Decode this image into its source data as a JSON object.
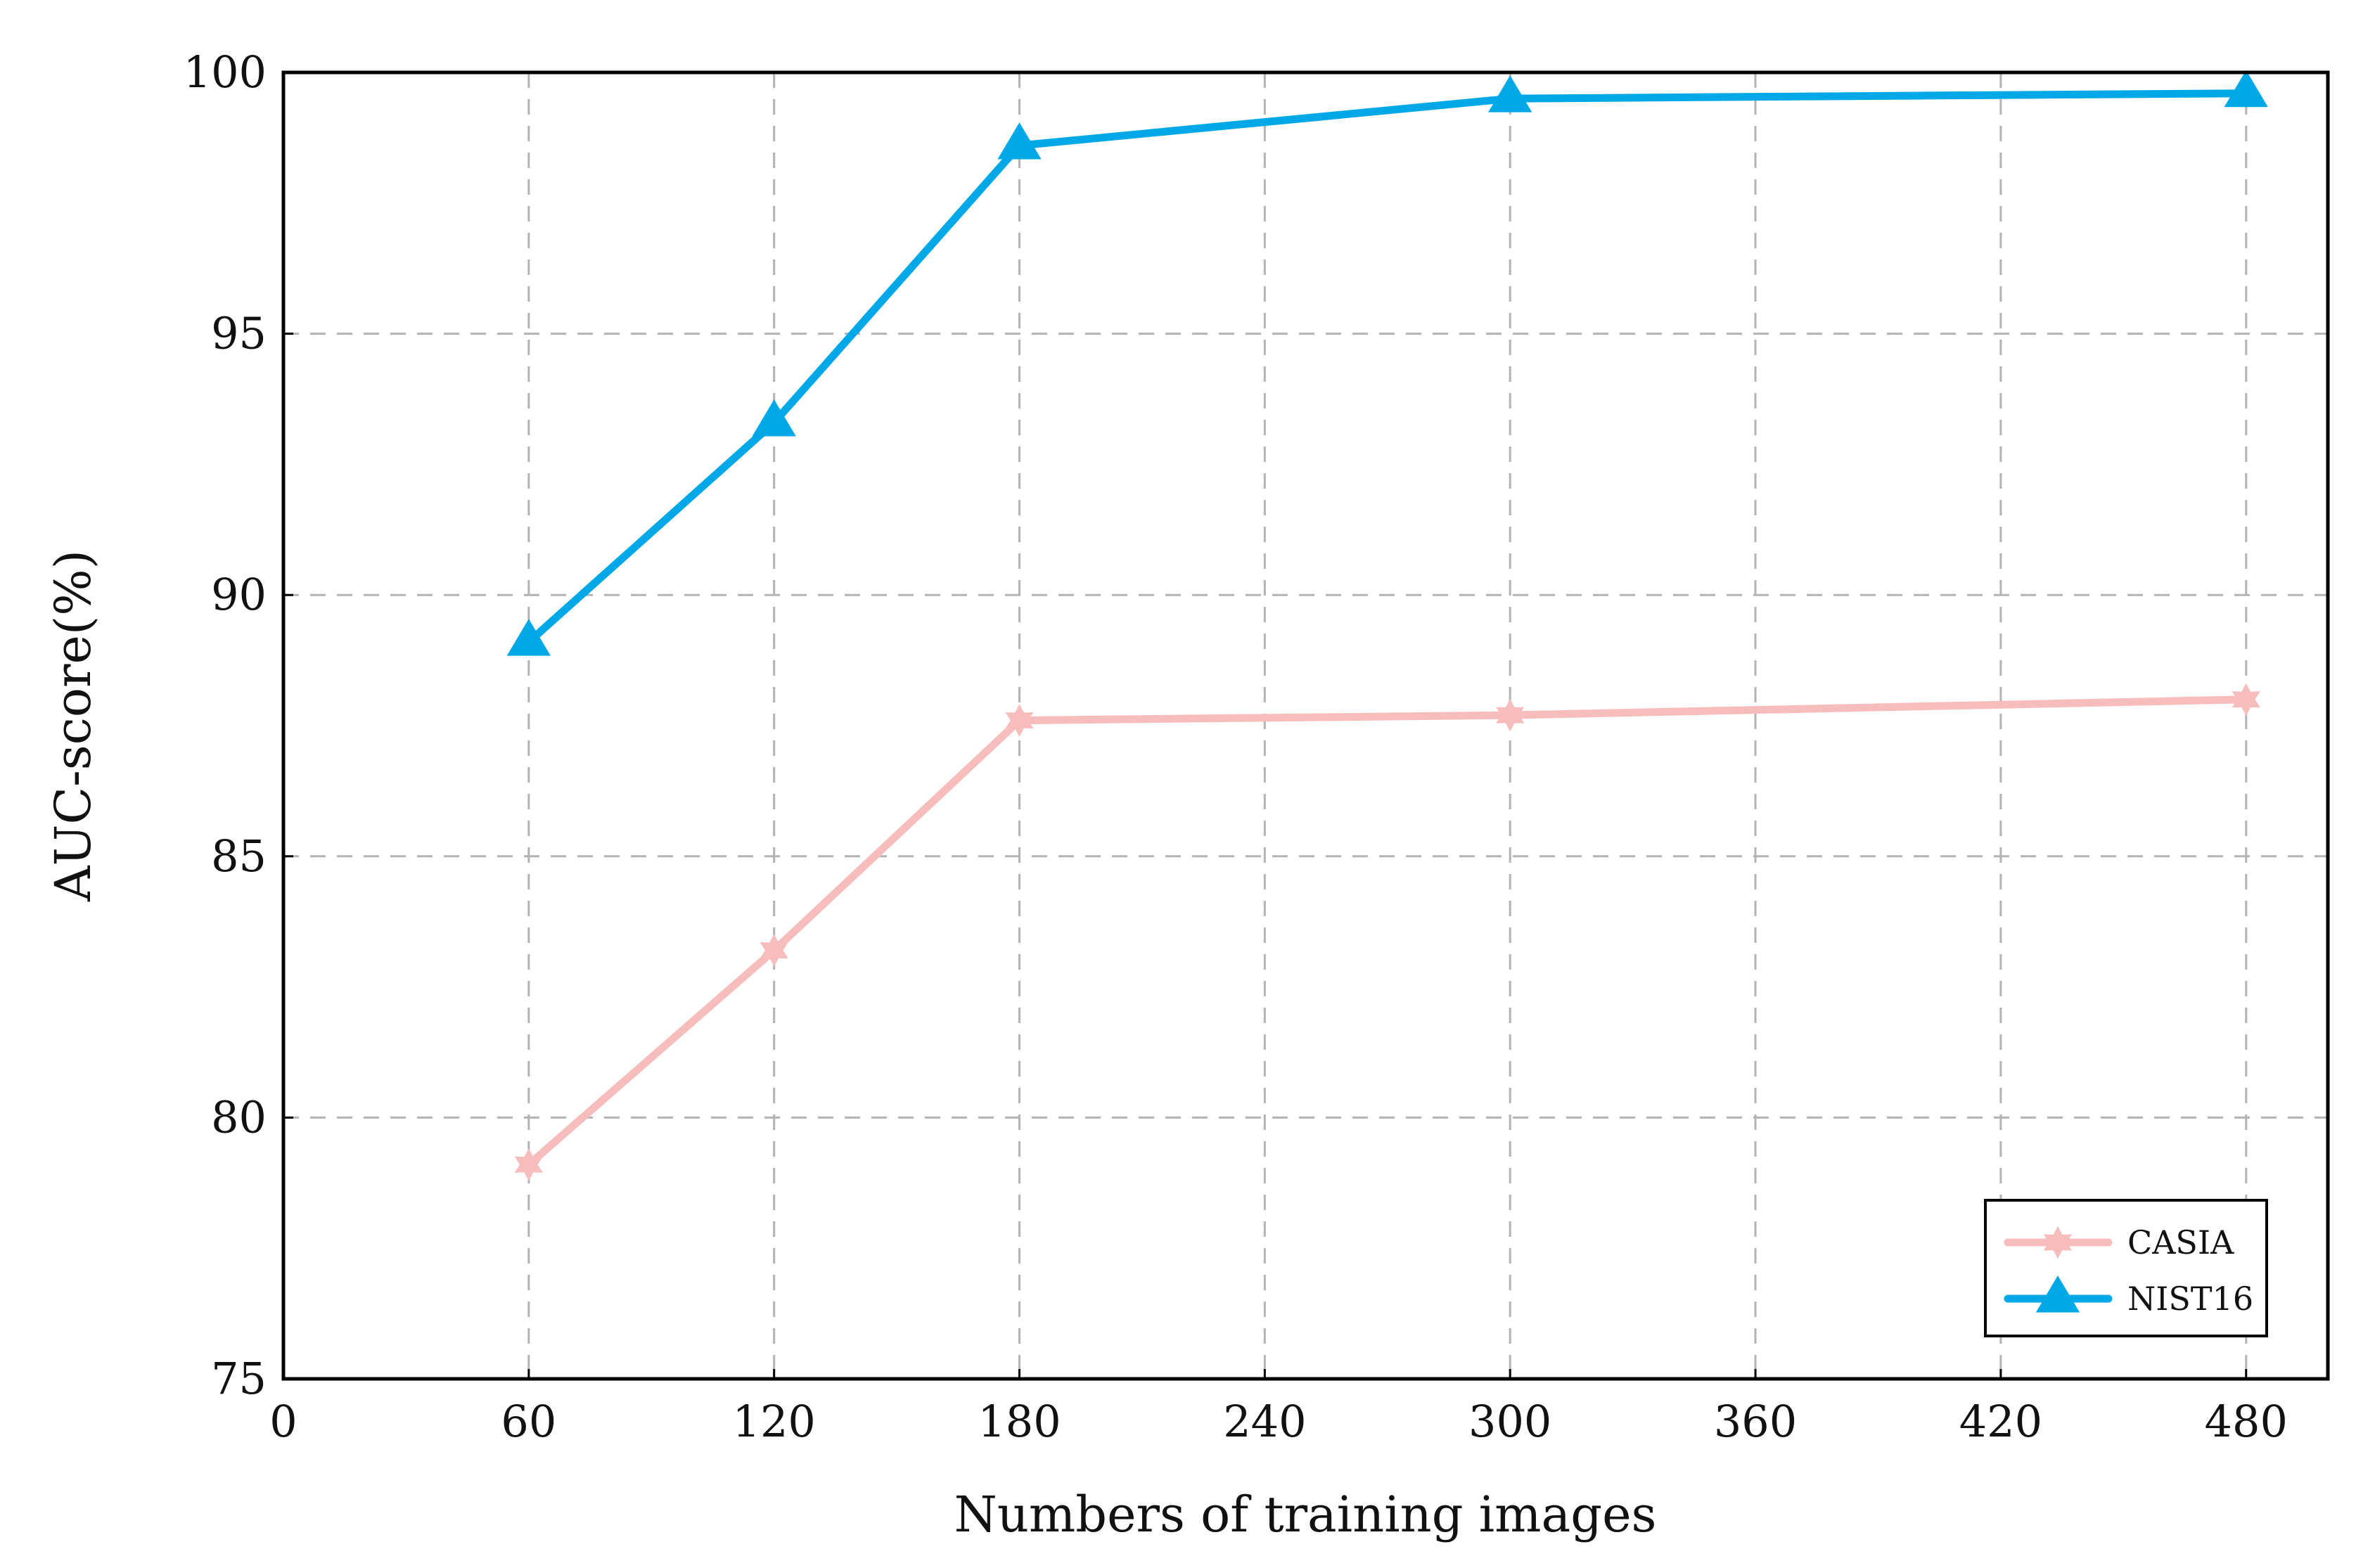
{
  "chart_data": {
    "type": "line",
    "title": "",
    "xlabel": "Numbers of training images",
    "ylabel": "AUC-score(%)",
    "xlim": [
      0,
      500
    ],
    "ylim": [
      75,
      100
    ],
    "xticks": [
      0,
      60,
      120,
      180,
      240,
      300,
      360,
      420,
      480
    ],
    "yticks": [
      75,
      80,
      85,
      90,
      95,
      100
    ],
    "grid": true,
    "legend_position": "bottom-right",
    "series": [
      {
        "name": "CASIA",
        "color": "#f7bcbc",
        "marker": "star",
        "x": [
          60,
          120,
          180,
          300,
          480
        ],
        "y": [
          79.1,
          83.2,
          87.6,
          87.7,
          88.0
        ]
      },
      {
        "name": "NIST16",
        "color": "#00a8e8",
        "marker": "triangle",
        "x": [
          60,
          120,
          180,
          300,
          480
        ],
        "y": [
          89.1,
          93.3,
          98.6,
          99.5,
          99.6
        ]
      }
    ]
  }
}
